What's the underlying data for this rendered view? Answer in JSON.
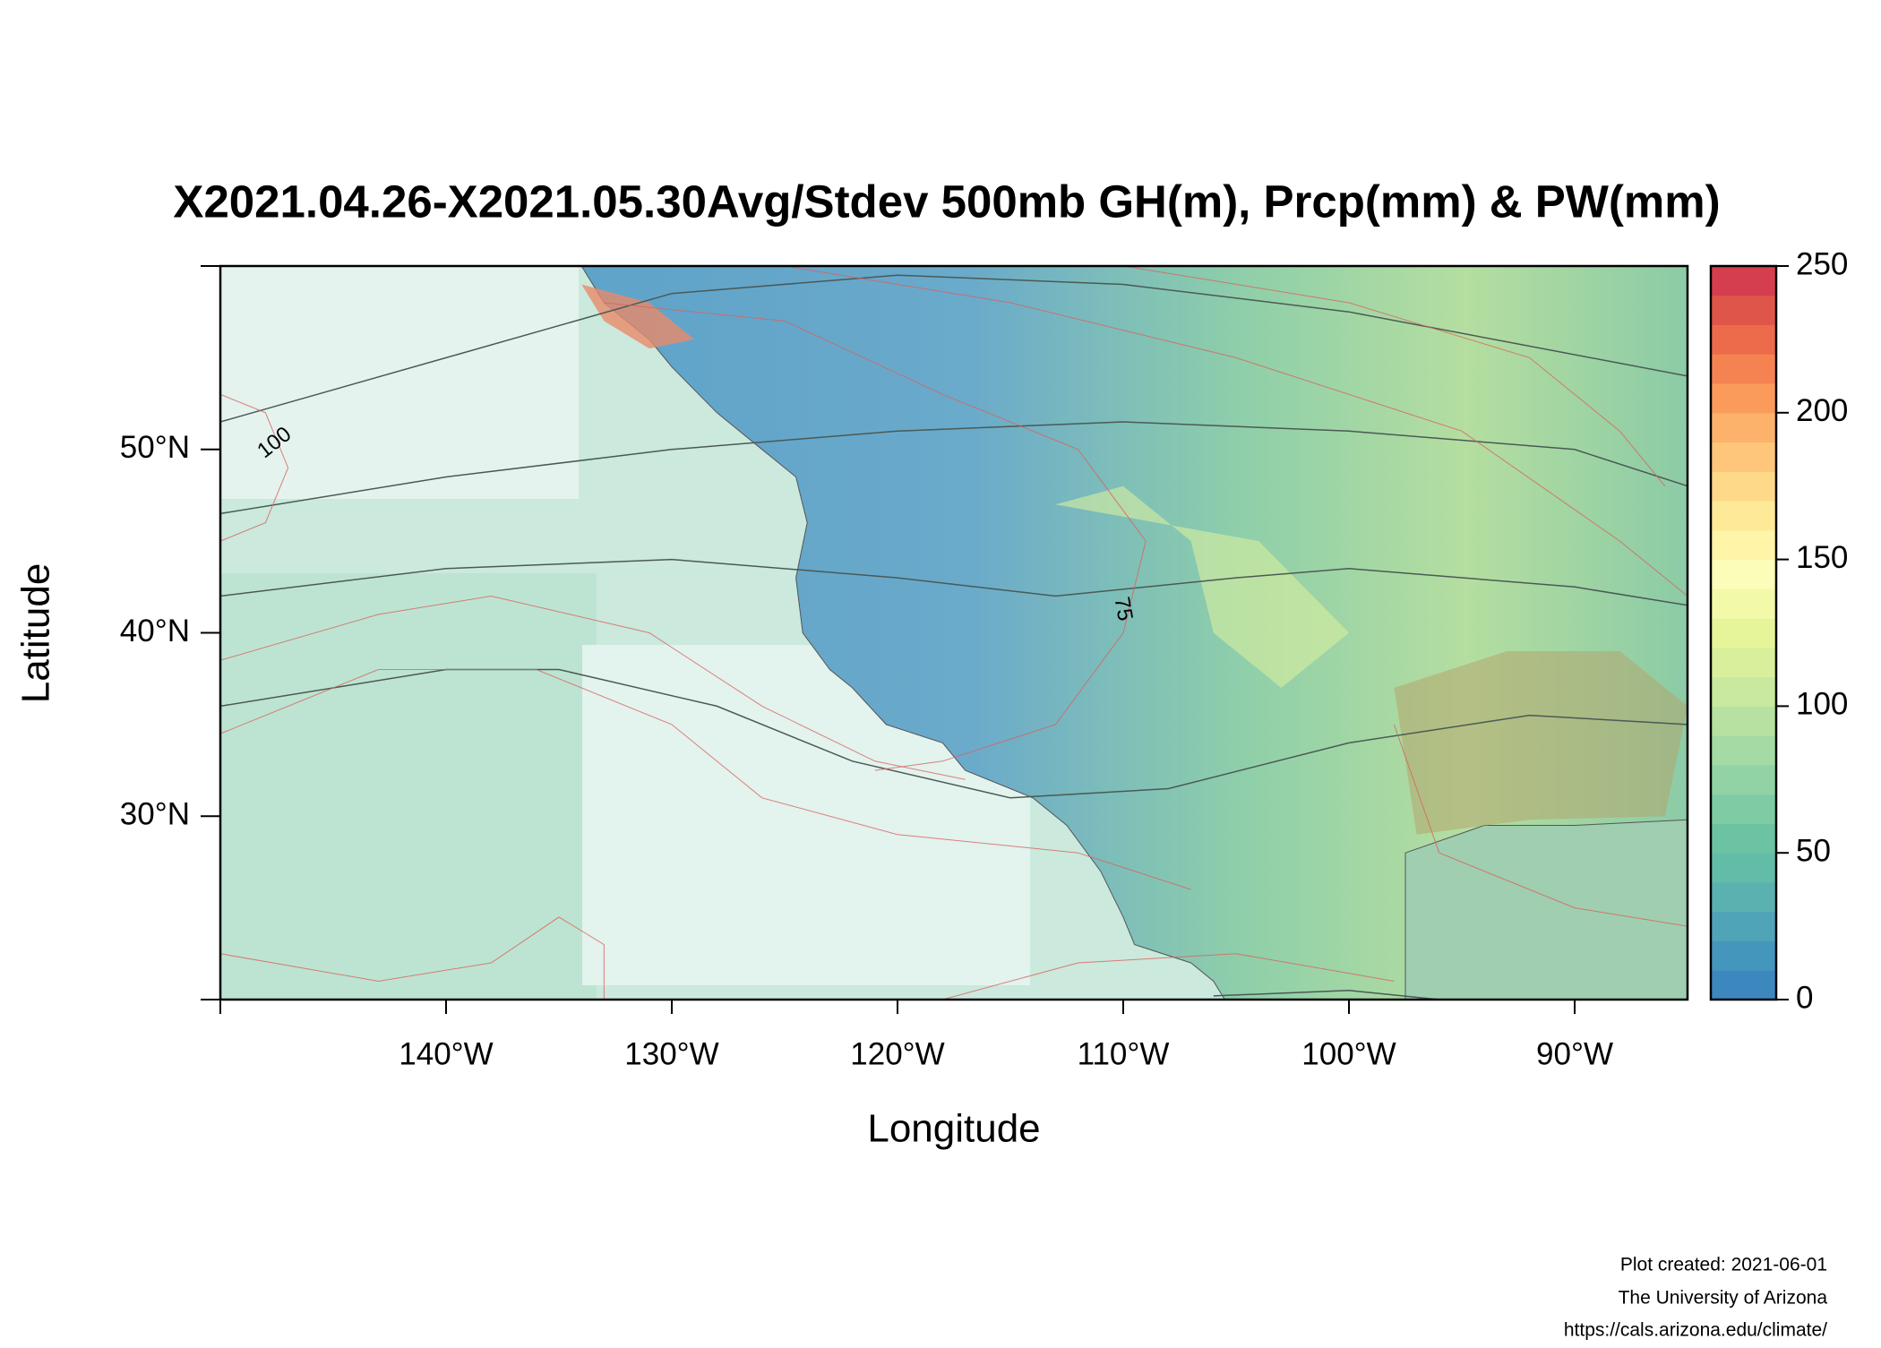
{
  "chart_data": {
    "type": "map",
    "title": "X2021.04.26-X2021.05.30Avg/Stdev 500mb GH(m), Prcp(mm) & PW(mm)",
    "xlabel": "Longitude",
    "ylabel": "Latitude",
    "xlim": [
      -150,
      -85
    ],
    "ylim": [
      20,
      60
    ],
    "xticks": [
      {
        "value": -140,
        "label": "140°W"
      },
      {
        "value": -130,
        "label": "130°W"
      },
      {
        "value": -120,
        "label": "120°W"
      },
      {
        "value": -110,
        "label": "110°W"
      },
      {
        "value": -100,
        "label": "100°W"
      },
      {
        "value": -90,
        "label": "90°W"
      }
    ],
    "yticks": [
      {
        "value": 30,
        "label": "30°N"
      },
      {
        "value": 40,
        "label": "40°N"
      },
      {
        "value": 50,
        "label": "50°N"
      }
    ],
    "colorbar_lim": [
      0,
      250
    ],
    "colorbar_ticks": [
      0,
      50,
      100,
      150,
      200,
      250
    ],
    "colorbar_colors": [
      "#3d87bf",
      "#4596bd",
      "#4fa4b7",
      "#5ab1af",
      "#63bca7",
      "#6cc3a3",
      "#7ecba4",
      "#91d3a4",
      "#a4daa4",
      "#b6e1a1",
      "#c8e99e",
      "#d8ef9b",
      "#e6f59a",
      "#f2f9a9",
      "#fcfdb9",
      "#fff4a8",
      "#fee999",
      "#fed98a",
      "#fdc67a",
      "#fdb26b",
      "#fa9b5c",
      "#f58352",
      "#ec6b4b",
      "#e05549",
      "#d53e4f"
    ],
    "contour_labels": [
      100,
      75
    ],
    "credits": [
      "Plot created: 2021-06-01",
      "The University of Arizona",
      "https://cals.arizona.edu/climate/"
    ]
  }
}
